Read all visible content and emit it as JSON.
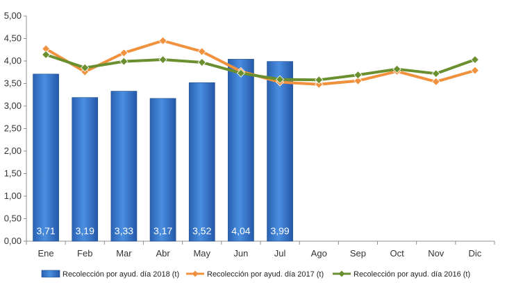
{
  "chart_data": {
    "type": "bar",
    "title": "",
    "xlabel": "",
    "ylabel": "",
    "categories": [
      "Ene",
      "Feb",
      "Mar",
      "Abr",
      "May",
      "Jun",
      "Jul",
      "Ago",
      "Sep",
      "Oct",
      "Nov",
      "Dic"
    ],
    "ylim": [
      0,
      5
    ],
    "ytick_values": [
      0,
      0.5,
      1,
      1.5,
      2,
      2.5,
      3,
      3.5,
      4,
      4.5,
      5
    ],
    "ytick_labels": [
      "0,00",
      "0,50",
      "1,00",
      "1,50",
      "2,00",
      "2,50",
      "3,00",
      "3,50",
      "4,00",
      "4,50",
      "5,00"
    ],
    "grid": false,
    "legend_position": "bottom",
    "series": [
      {
        "name": "Recolección por ayud. día 2018 (t)",
        "kind": "bar",
        "color": "#2E6FC4",
        "values": [
          3.71,
          3.19,
          3.33,
          3.17,
          3.52,
          4.04,
          3.99,
          null,
          null,
          null,
          null,
          null
        ],
        "data_labels": [
          "3,71",
          "3,19",
          "3,33",
          "3,17",
          "3,52",
          "4,04",
          "3,99"
        ]
      },
      {
        "name": "Recolección por ayud. día 2017 (t)",
        "kind": "line",
        "color": "#F0913E",
        "values": [
          4.27,
          3.76,
          4.18,
          4.45,
          4.21,
          3.77,
          3.53,
          3.48,
          3.56,
          3.77,
          3.54,
          3.79
        ]
      },
      {
        "name": "Recolección por ayud. día 2016 (t)",
        "kind": "line",
        "color": "#6A8F2F",
        "values": [
          4.14,
          3.85,
          3.99,
          4.03,
          3.97,
          3.73,
          3.59,
          3.58,
          3.69,
          3.82,
          3.72,
          4.03
        ]
      }
    ]
  }
}
